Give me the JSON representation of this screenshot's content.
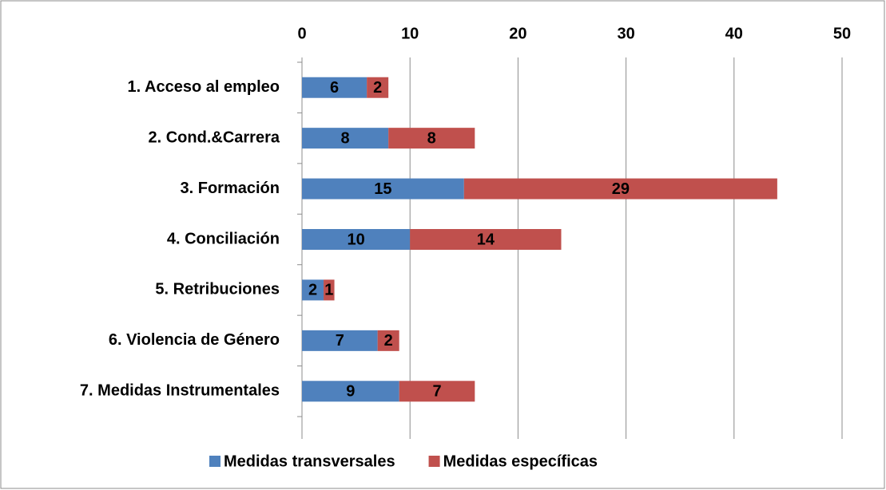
{
  "chart_data": {
    "type": "bar",
    "orientation": "horizontal",
    "stacked": true,
    "categories": [
      "1. Acceso al empleo",
      "2. Cond.&Carrera",
      "3. Formación",
      "4. Conciliación",
      "5. Retribuciones",
      "6. Violencia de Género",
      "7. Medidas Instrumentales"
    ],
    "series": [
      {
        "name": "Medidas transversales",
        "color": "#4f81bd",
        "values": [
          6,
          8,
          15,
          10,
          2,
          7,
          9
        ]
      },
      {
        "name": "Medidas específicas",
        "color": "#c0504d",
        "values": [
          2,
          8,
          29,
          14,
          1,
          2,
          7
        ]
      }
    ],
    "xlim": [
      0,
      50
    ],
    "xticks": [
      0,
      10,
      20,
      30,
      40,
      50
    ],
    "grid": true,
    "legend": "bottom"
  }
}
